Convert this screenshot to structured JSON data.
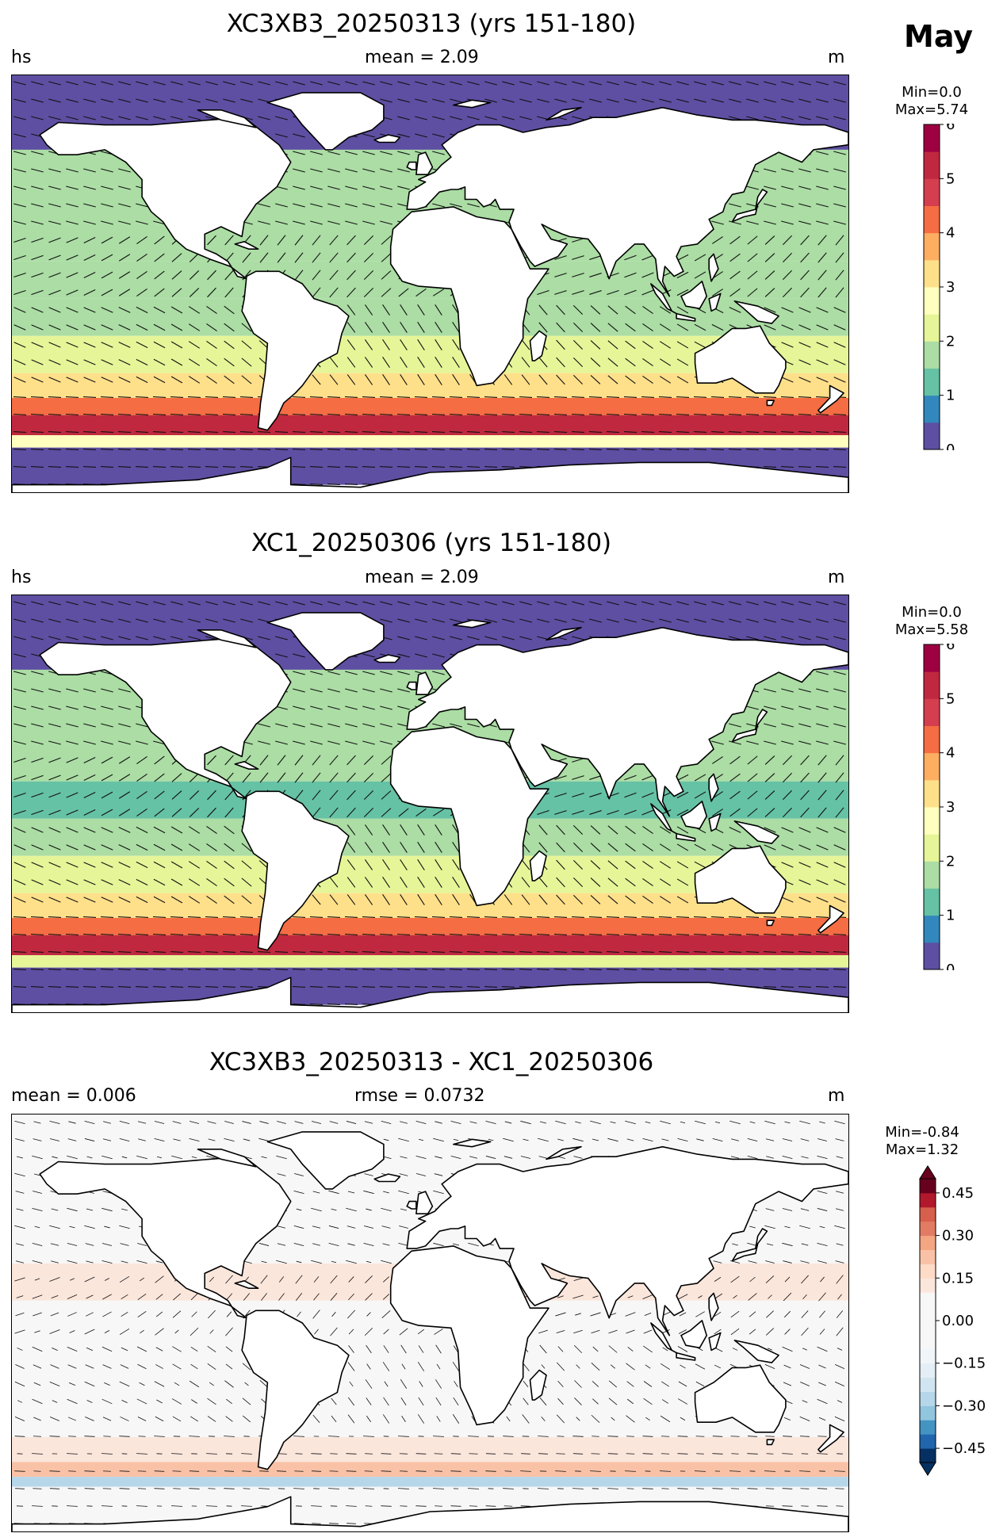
{
  "month_label": "May",
  "panels": [
    {
      "title": "XC3XB3_20250313 (yrs 151-180)",
      "left_label": "hs",
      "center_label": "mean = 2.09",
      "right_label": "m",
      "min_label": "Min=0.0",
      "max_label": "Max=5.74"
    },
    {
      "title": "XC1_20250306 (yrs 151-180)",
      "left_label": "hs",
      "center_label": "mean = 2.09",
      "right_label": "m",
      "min_label": "Min=0.0",
      "max_label": "Max=5.58"
    },
    {
      "title": "XC3XB3_20250313 - XC1_20250306",
      "left_label": "mean = 0.006",
      "center_label": "rmse = 0.0732",
      "right_label": "m",
      "min_label": "Min=-0.84",
      "max_label": "Max=1.32"
    }
  ],
  "chart_data": [
    {
      "type": "heatmap",
      "title": "XC3XB3_20250313 (yrs 151-180)",
      "variable": "hs",
      "units": "m",
      "mean": 2.09,
      "min": 0.0,
      "max": 5.74,
      "colorbar": {
        "range": [
          0,
          6
        ],
        "tick_labels": [
          "0",
          "1",
          "2",
          "3",
          "4",
          "5",
          "6"
        ],
        "levels": [
          0,
          0.5,
          1,
          1.5,
          2,
          2.5,
          3,
          3.5,
          4,
          4.5,
          5,
          5.5,
          6
        ],
        "colormap": "Spectral_r"
      },
      "latitude_bands": [
        {
          "lat": [
            60,
            90
          ],
          "value": 0.2
        },
        {
          "lat": [
            45,
            60
          ],
          "value": 1.5
        },
        {
          "lat": [
            30,
            45
          ],
          "value": 1.8
        },
        {
          "lat": [
            15,
            30
          ],
          "value": 1.6
        },
        {
          "lat": [
            0,
            15
          ],
          "value": 1.5
        },
        {
          "lat": [
            -15,
            0
          ],
          "value": 1.8
        },
        {
          "lat": [
            -30,
            -15
          ],
          "value": 2.2
        },
        {
          "lat": [
            -40,
            -30
          ],
          "value": 3.0
        },
        {
          "lat": [
            -47,
            -40
          ],
          "value": 4.3
        },
        {
          "lat": [
            -55,
            -47
          ],
          "value": 5.3
        },
        {
          "lat": [
            -60,
            -55
          ],
          "value": 2.5
        },
        {
          "lat": [
            -75,
            -60
          ],
          "value": 0.3
        }
      ]
    },
    {
      "type": "heatmap",
      "title": "XC1_20250306 (yrs 151-180)",
      "variable": "hs",
      "units": "m",
      "mean": 2.09,
      "min": 0.0,
      "max": 5.58,
      "colorbar": {
        "range": [
          0,
          6
        ],
        "tick_labels": [
          "0",
          "1",
          "2",
          "3",
          "4",
          "5",
          "6"
        ],
        "levels": [
          0,
          0.5,
          1,
          1.5,
          2,
          2.5,
          3,
          3.5,
          4,
          4.5,
          5,
          5.5,
          6
        ],
        "colormap": "Spectral_r"
      },
      "latitude_bands": [
        {
          "lat": [
            60,
            90
          ],
          "value": 0.2
        },
        {
          "lat": [
            45,
            60
          ],
          "value": 1.5
        },
        {
          "lat": [
            30,
            45
          ],
          "value": 1.8
        },
        {
          "lat": [
            15,
            30
          ],
          "value": 1.6
        },
        {
          "lat": [
            0,
            15
          ],
          "value": 1.4
        },
        {
          "lat": [
            -15,
            0
          ],
          "value": 1.7
        },
        {
          "lat": [
            -30,
            -15
          ],
          "value": 2.1
        },
        {
          "lat": [
            -40,
            -30
          ],
          "value": 3.0
        },
        {
          "lat": [
            -47,
            -40
          ],
          "value": 4.2
        },
        {
          "lat": [
            -55,
            -47
          ],
          "value": 5.2
        },
        {
          "lat": [
            -60,
            -55
          ],
          "value": 2.4
        },
        {
          "lat": [
            -75,
            -60
          ],
          "value": 0.3
        }
      ]
    },
    {
      "type": "heatmap",
      "title": "XC3XB3_20250313 - XC1_20250306",
      "units": "m",
      "mean": 0.006,
      "rmse": 0.0732,
      "min": -0.84,
      "max": 1.32,
      "colorbar": {
        "range": [
          -0.5,
          0.5
        ],
        "extend": "both",
        "tick_labels": [
          "0.45",
          "0.30",
          "0.15",
          "0.00",
          "−0.15",
          "−0.30",
          "−0.45"
        ],
        "levels": [
          -0.5,
          -0.45,
          -0.4,
          -0.35,
          -0.3,
          -0.25,
          -0.2,
          -0.15,
          -0.1,
          -0.05,
          0,
          0.05,
          0.1,
          0.15,
          0.2,
          0.25,
          0.3,
          0.35,
          0.4,
          0.45,
          0.5
        ],
        "colormap": "RdBu_r"
      },
      "latitude_bands": [
        {
          "lat": [
            60,
            90
          ],
          "value": 0.0
        },
        {
          "lat": [
            45,
            60
          ],
          "value": -0.05
        },
        {
          "lat": [
            30,
            45
          ],
          "value": 0.08
        },
        {
          "lat": [
            15,
            30
          ],
          "value": 0.1
        },
        {
          "lat": [
            0,
            15
          ],
          "value": 0.05
        },
        {
          "lat": [
            -15,
            0
          ],
          "value": 0.03
        },
        {
          "lat": [
            -30,
            -15
          ],
          "value": 0.0
        },
        {
          "lat": [
            -40,
            -30
          ],
          "value": -0.03
        },
        {
          "lat": [
            -50,
            -40
          ],
          "value": 0.12
        },
        {
          "lat": [
            -56,
            -50
          ],
          "value": 0.2
        },
        {
          "lat": [
            -60,
            -56
          ],
          "value": -0.3
        },
        {
          "lat": [
            -75,
            -60
          ],
          "value": 0.05
        }
      ]
    }
  ]
}
